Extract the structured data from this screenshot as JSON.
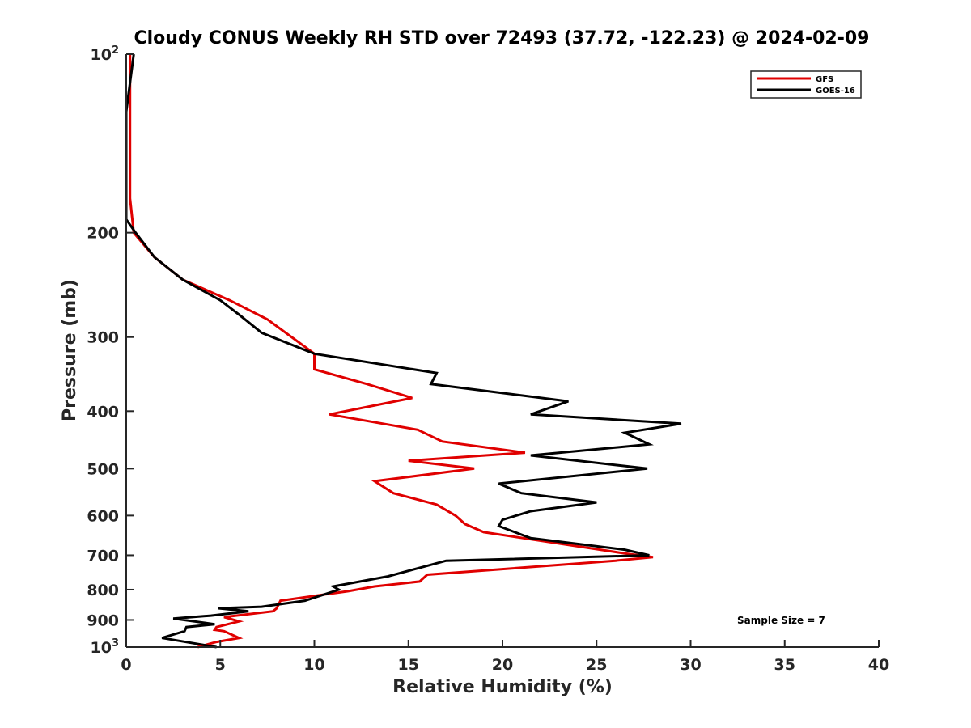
{
  "chart_data": {
    "type": "line",
    "title": "Cloudy CONUS Weekly RH STD over 72493 (37.72, -122.23) @ 2024-02-09",
    "xlabel": "Relative Humidity (%)",
    "ylabel": "Pressure (mb)",
    "xlim": [
      0,
      40
    ],
    "ylim": [
      1000,
      100
    ],
    "yscale": "log",
    "y_reversed": true,
    "grid": false,
    "legend_position": "top-right",
    "x_ticks": [
      "0",
      "5",
      "10",
      "15",
      "20",
      "25",
      "30",
      "35",
      "40"
    ],
    "y_ticks": [
      {
        "value": 100,
        "base": "10",
        "exp": "2"
      },
      {
        "value": 200,
        "label": "200"
      },
      {
        "value": 300,
        "label": "300"
      },
      {
        "value": 400,
        "label": "400"
      },
      {
        "value": 500,
        "label": "500"
      },
      {
        "value": 600,
        "label": "600"
      },
      {
        "value": 700,
        "label": "700"
      },
      {
        "value": 800,
        "label": "800"
      },
      {
        "value": 900,
        "label": "900"
      },
      {
        "value": 1000,
        "base": "10",
        "exp": "3"
      }
    ],
    "annotation": "Sample Size = 7",
    "series": [
      {
        "name": "GFS",
        "color": "#e00000",
        "points": [
          [
            0.2,
            100
          ],
          [
            0.2,
            125
          ],
          [
            0.2,
            150
          ],
          [
            0.2,
            175
          ],
          [
            0.4,
            200
          ],
          [
            1.5,
            220
          ],
          [
            3.0,
            240
          ],
          [
            5.5,
            260
          ],
          [
            7.5,
            280
          ],
          [
            10,
            320
          ],
          [
            10,
            340
          ],
          [
            12.8,
            360
          ],
          [
            15.2,
            380
          ],
          [
            10.8,
            405
          ],
          [
            15.5,
            430
          ],
          [
            16.8,
            450
          ],
          [
            21.2,
            470
          ],
          [
            15.0,
            485
          ],
          [
            18.5,
            500
          ],
          [
            13.2,
            525
          ],
          [
            14.2,
            550
          ],
          [
            16.5,
            575
          ],
          [
            17.5,
            600
          ],
          [
            18.0,
            620
          ],
          [
            19.0,
            640
          ],
          [
            26.5,
            695
          ],
          [
            28.0,
            705
          ],
          [
            26.0,
            715
          ],
          [
            16.0,
            755
          ],
          [
            15.6,
            775
          ],
          [
            13.2,
            790
          ],
          [
            11.8,
            805
          ],
          [
            8.2,
            835
          ],
          [
            8.0,
            860
          ],
          [
            7.8,
            870
          ],
          [
            5.2,
            890
          ],
          [
            6.0,
            905
          ],
          [
            4.8,
            925
          ],
          [
            4.7,
            935
          ],
          [
            5.2,
            940
          ],
          [
            6.0,
            965
          ],
          [
            4.8,
            980
          ],
          [
            3.8,
            1000
          ]
        ]
      },
      {
        "name": "GOES-16",
        "color": "#000000",
        "points": [
          [
            0.4,
            100
          ],
          [
            0,
            125
          ],
          [
            0,
            150
          ],
          [
            0,
            175
          ],
          [
            0,
            190
          ],
          [
            0.5,
            200
          ],
          [
            1.5,
            220
          ],
          [
            3.0,
            240
          ],
          [
            5.0,
            260
          ],
          [
            6.0,
            275
          ],
          [
            7.2,
            295
          ],
          [
            10.0,
            320
          ],
          [
            16.5,
            345
          ],
          [
            16.2,
            360
          ],
          [
            23.5,
            385
          ],
          [
            21.5,
            405
          ],
          [
            29.5,
            420
          ],
          [
            26.5,
            435
          ],
          [
            27.8,
            455
          ],
          [
            21.5,
            475
          ],
          [
            27.7,
            500
          ],
          [
            19.8,
            530
          ],
          [
            21.0,
            550
          ],
          [
            25.0,
            570
          ],
          [
            21.5,
            590
          ],
          [
            20.0,
            610
          ],
          [
            19.8,
            625
          ],
          [
            21.5,
            655
          ],
          [
            26.5,
            685
          ],
          [
            27.8,
            700
          ],
          [
            17.0,
            715
          ],
          [
            13.9,
            760
          ],
          [
            11.0,
            790
          ],
          [
            11.3,
            800
          ],
          [
            9.5,
            835
          ],
          [
            7.2,
            855
          ],
          [
            4.9,
            860
          ],
          [
            6.5,
            870
          ],
          [
            4.5,
            885
          ],
          [
            2.5,
            895
          ],
          [
            4.7,
            915
          ],
          [
            3.2,
            925
          ],
          [
            3.1,
            940
          ],
          [
            1.9,
            965
          ],
          [
            4.8,
            1000
          ]
        ]
      }
    ]
  }
}
